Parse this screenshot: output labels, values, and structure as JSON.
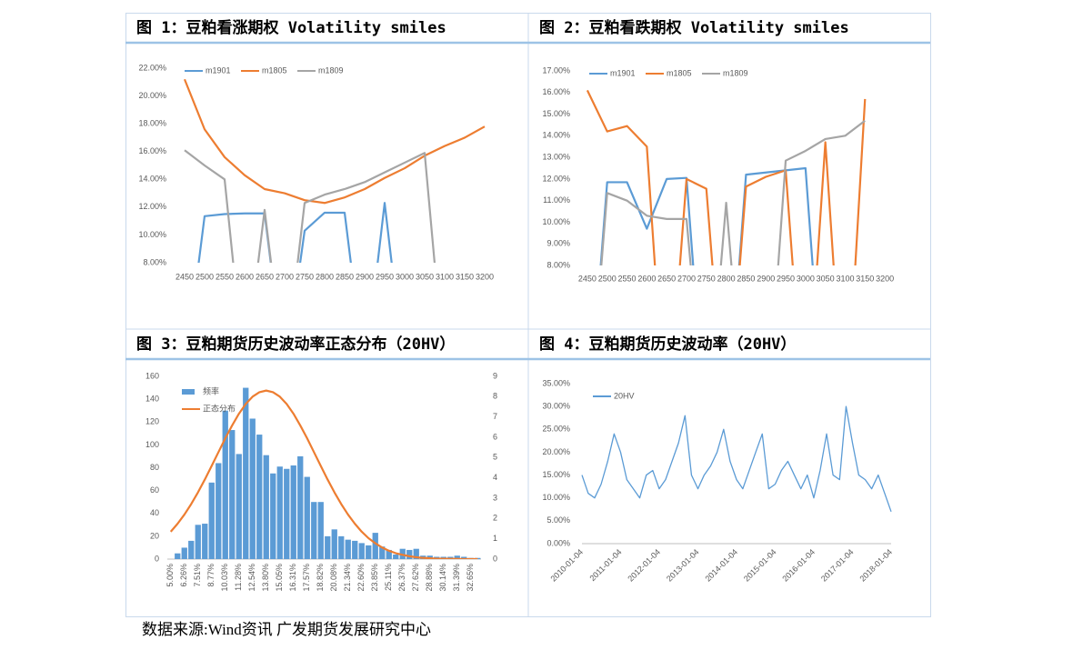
{
  "chart_data": [
    {
      "type": "line",
      "title": "图 1：豆粕看涨期权 Volatility smiles",
      "categories": [
        "2450",
        "2500",
        "2550",
        "2600",
        "2650",
        "2700",
        "2750",
        "2800",
        "2850",
        "2900",
        "2950",
        "3000",
        "3050",
        "3100",
        "3150",
        "3200"
      ],
      "ylim": [
        8,
        22
      ],
      "yticks": [
        {
          "value": 8,
          "label": "8.00%"
        },
        {
          "value": 10,
          "label": "10.00%"
        },
        {
          "value": 12,
          "label": "12.00%"
        },
        {
          "value": 14,
          "label": "14.00%"
        },
        {
          "value": 16,
          "label": "16.00%"
        },
        {
          "value": 18,
          "label": "18.00%"
        },
        {
          "value": 20,
          "label": "20.00%"
        },
        {
          "value": 22,
          "label": "22.00%"
        }
      ],
      "grid": false,
      "legend": "top",
      "series": [
        {
          "name": "m1901",
          "color": "#5b9bd5",
          "values": [
            0,
            11.35,
            11.5,
            11.55,
            11.55,
            0,
            10.3,
            11.6,
            11.6,
            0,
            12.3,
            0,
            null,
            null,
            null,
            null
          ]
        },
        {
          "name": "m1805",
          "color": "#ed7d31",
          "values": [
            21.2,
            17.6,
            15.6,
            14.3,
            13.3,
            13.0,
            12.5,
            12.3,
            12.7,
            13.3,
            14.1,
            14.8,
            15.7,
            16.4,
            17.0,
            17.8
          ]
        },
        {
          "name": "m1809",
          "color": "#a5a5a5",
          "values": [
            16.1,
            15.0,
            14.0,
            0,
            11.8,
            0,
            12.3,
            12.9,
            13.3,
            13.8,
            14.5,
            15.2,
            15.9,
            0,
            null,
            null
          ]
        }
      ]
    },
    {
      "type": "line",
      "title": "图 2：豆粕看跌期权 Volatility smiles",
      "categories": [
        "2450",
        "2500",
        "2550",
        "2600",
        "2650",
        "2700",
        "2750",
        "2800",
        "2850",
        "2900",
        "2950",
        "3000",
        "3050",
        "3100",
        "3150",
        "3200"
      ],
      "ylim": [
        8,
        17
      ],
      "yticks": [
        {
          "value": 8,
          "label": "8.00%"
        },
        {
          "value": 9,
          "label": "9.00%"
        },
        {
          "value": 10,
          "label": "10.00%"
        },
        {
          "value": 11,
          "label": "11.00%"
        },
        {
          "value": 12,
          "label": "12.00%"
        },
        {
          "value": 13,
          "label": "13.00%"
        },
        {
          "value": 14,
          "label": "14.00%"
        },
        {
          "value": 15,
          "label": "15.00%"
        },
        {
          "value": 16,
          "label": "16.00%"
        },
        {
          "value": 17,
          "label": "17.00%"
        }
      ],
      "grid": false,
      "legend": "top",
      "series": [
        {
          "name": "m1901",
          "color": "#5b9bd5",
          "values": [
            0,
            11.85,
            11.85,
            9.7,
            12.0,
            12.05,
            0,
            0,
            12.2,
            12.3,
            12.4,
            12.5,
            0,
            null,
            null,
            null
          ]
        },
        {
          "name": "m1805",
          "color": "#ed7d31",
          "values": [
            16.1,
            14.2,
            14.45,
            13.5,
            0,
            12.0,
            11.55,
            0,
            11.65,
            12.1,
            12.4,
            0,
            13.7,
            0,
            15.7,
            null
          ]
        },
        {
          "name": "m1809",
          "color": "#a5a5a5",
          "values": [
            0,
            11.35,
            11.0,
            10.3,
            10.15,
            10.15,
            0,
            10.9,
            0,
            0,
            12.85,
            13.3,
            13.85,
            14.0,
            14.7,
            null
          ]
        }
      ]
    },
    {
      "type": "bar",
      "title": "图 3：豆粕期货历史波动率正态分布（20HV）",
      "categories": [
        "5.00%",
        null,
        "6.26%",
        null,
        "7.51%",
        null,
        "8.77%",
        null,
        "10.03%",
        null,
        "11.28%",
        null,
        "12.54%",
        null,
        "13.80%",
        null,
        "15.05%",
        null,
        "16.31%",
        null,
        "17.57%",
        null,
        "18.82%",
        null,
        "20.08%",
        null,
        "21.34%",
        null,
        "22.60%",
        null,
        "23.85%",
        null,
        "25.11%",
        null,
        "26.37%",
        null,
        "27.62%",
        null,
        "28.88%",
        null,
        "30.14%",
        null,
        "31.39%",
        null,
        "32.65%",
        null
      ],
      "ylim": [
        0,
        160
      ],
      "yticks": [
        0,
        20,
        40,
        60,
        80,
        100,
        120,
        140,
        160
      ],
      "y2lim": [
        0,
        9
      ],
      "y2ticks": [
        0,
        1,
        2,
        3,
        4,
        5,
        6,
        7,
        8,
        9
      ],
      "grid": false,
      "legend": "top-left",
      "series": [
        {
          "name": "频率",
          "color": "#5b9bd5",
          "values": [
            0,
            5,
            10,
            16,
            30,
            31,
            67,
            84,
            130,
            113,
            92,
            150,
            123,
            109,
            91,
            75,
            81,
            79,
            82,
            90,
            72,
            50,
            50,
            20,
            26,
            20,
            17,
            16,
            14,
            12,
            23,
            11,
            8,
            4,
            9,
            8,
            9,
            3,
            3,
            2,
            2,
            2,
            3,
            2,
            1,
            1
          ]
        },
        {
          "name": "正态分布",
          "color": "#ed7d31",
          "type": "line",
          "axis": "y2",
          "values": [
            1.35,
            1.74,
            2.19,
            2.71,
            3.29,
            3.92,
            4.59,
            5.27,
            5.95,
            6.58,
            7.16,
            7.64,
            8.0,
            8.22,
            8.3,
            8.22,
            8.0,
            7.64,
            7.16,
            6.58,
            5.95,
            5.27,
            4.59,
            3.92,
            3.29,
            2.71,
            2.19,
            1.74,
            1.35,
            1.03,
            0.78,
            0.57,
            0.41,
            0.29,
            0.21,
            0.14,
            0.09,
            0.06,
            0.04,
            0.02,
            0.02,
            0.01,
            0.01,
            0,
            0,
            0
          ]
        }
      ]
    },
    {
      "type": "line",
      "title": "图 4：豆粕期货历史波动率（20HV）",
      "x": [
        "2010-01-04",
        "2010-03-04",
        "2010-05-04",
        "2010-07-04",
        "2010-09-04",
        "2010-11-04",
        "2011-01-04",
        "2011-03-04",
        "2011-05-04",
        "2011-07-04",
        "2011-09-04",
        "2011-11-04",
        "2012-01-04",
        "2012-03-04",
        "2012-05-04",
        "2012-07-04",
        "2012-09-04",
        "2012-11-04",
        "2013-01-04",
        "2013-03-04",
        "2013-05-04",
        "2013-07-04",
        "2013-09-04",
        "2013-11-04",
        "2014-01-04",
        "2014-03-04",
        "2014-05-04",
        "2014-07-04",
        "2014-09-04",
        "2014-11-04",
        "2015-01-04",
        "2015-03-04",
        "2015-05-04",
        "2015-07-04",
        "2015-09-04",
        "2015-11-04",
        "2016-01-04",
        "2016-03-04",
        "2016-05-04",
        "2016-07-04",
        "2016-09-04",
        "2016-11-04",
        "2017-01-04",
        "2017-03-04",
        "2017-05-04",
        "2017-07-04",
        "2017-09-04",
        "2017-11-04",
        "2018-01-04"
      ],
      "xlim": [
        "2010-01-04",
        "2018-01-04"
      ],
      "xticks": [
        "2010-01-04",
        "2011-01-04",
        "2012-01-04",
        "2013-01-04",
        "2014-01-04",
        "2015-01-04",
        "2016-01-04",
        "2017-01-04",
        "2018-01-04"
      ],
      "ylim": [
        0,
        35
      ],
      "yticks": [
        {
          "value": 0,
          "label": "0.00%"
        },
        {
          "value": 5,
          "label": "5.00%"
        },
        {
          "value": 10,
          "label": "10.00%"
        },
        {
          "value": 15,
          "label": "15.00%"
        },
        {
          "value": 20,
          "label": "20.00%"
        },
        {
          "value": 25,
          "label": "25.00%"
        },
        {
          "value": 30,
          "label": "30.00%"
        },
        {
          "value": 35,
          "label": "35.00%"
        }
      ],
      "grid": false,
      "legend": "top-left",
      "series": [
        {
          "name": "20HV",
          "color": "#5b9bd5",
          "values": [
            15,
            11,
            10,
            13,
            18,
            24,
            20,
            14,
            12,
            10,
            15,
            16,
            12,
            14,
            18,
            22,
            28,
            15,
            12,
            15,
            17,
            20,
            25,
            18,
            14,
            12,
            16,
            20,
            24,
            12,
            13,
            16,
            18,
            15,
            12,
            15,
            10,
            16,
            24,
            15,
            14,
            30,
            22,
            15,
            14,
            12,
            15,
            11,
            7
          ]
        }
      ]
    }
  ],
  "source": "数据来源:Wind资讯  广发期货发展研究中心"
}
